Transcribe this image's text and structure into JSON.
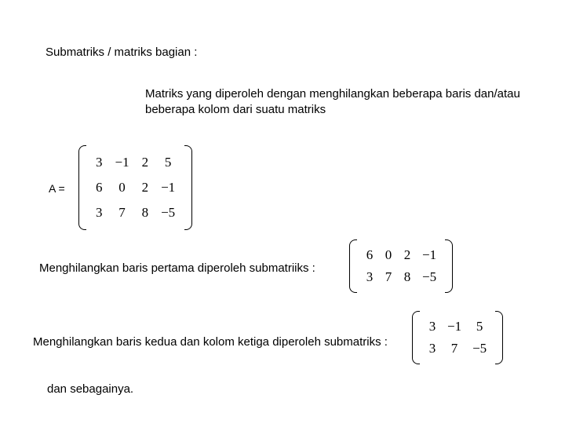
{
  "title": "Submatriks / matriks bagian :",
  "definition": "Matriks yang diperoleh dengan menghilangkan beberapa baris dan/atau beberapa kolom dari suatu matriks",
  "a_label": "A =",
  "line1": "Menghilangkan baris pertama diperoleh submatriiks :",
  "line2": "Menghilangkan baris kedua dan kolom ketiga diperoleh submatriks :",
  "line3": "dan sebagainya.",
  "matrix_a": {
    "rows": 3,
    "cols": 4,
    "cells": [
      "3",
      "−1",
      "2",
      "5",
      "6",
      "0",
      "2",
      "−1",
      "3",
      "7",
      "8",
      "−5"
    ],
    "font_size": 17,
    "cell_padding": "6px 8px"
  },
  "matrix_b": {
    "rows": 2,
    "cols": 4,
    "cells": [
      "6",
      "0",
      "2",
      "−1",
      "3",
      "7",
      "8",
      "−5"
    ],
    "font_size": 17,
    "cell_padding": "4px 7px"
  },
  "matrix_c": {
    "rows": 2,
    "cols": 3,
    "cells": [
      "3",
      "−1",
      "5",
      "3",
      "7",
      "−5"
    ],
    "font_size": 17,
    "cell_padding": "4px 7px"
  },
  "colors": {
    "text": "#000000",
    "background": "#ffffff"
  }
}
